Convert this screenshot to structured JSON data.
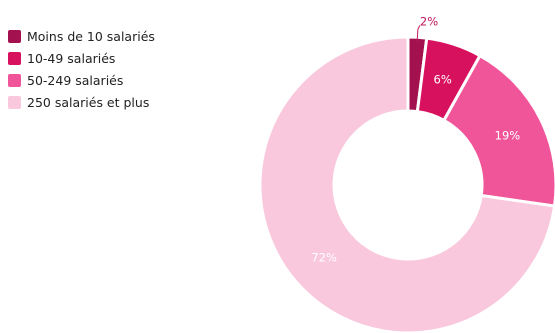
{
  "chart_data": {
    "type": "pie",
    "donut": true,
    "title": "",
    "legend_position": "top-left",
    "categories": [
      "Moins de 10 salariés",
      "10-49 salariés",
      "50-249 salariés",
      "250 salariés et plus"
    ],
    "values": [
      2,
      6,
      19,
      72
    ],
    "value_labels": [
      "2%",
      "6%",
      "19%",
      "72%"
    ],
    "colors": [
      "#a3114f",
      "#d8115f",
      "#f0559a",
      "#f9c8dc"
    ],
    "label_colors": [
      "#c0185c",
      "#ffffff",
      "#ffffff",
      "#ffffff"
    ]
  }
}
